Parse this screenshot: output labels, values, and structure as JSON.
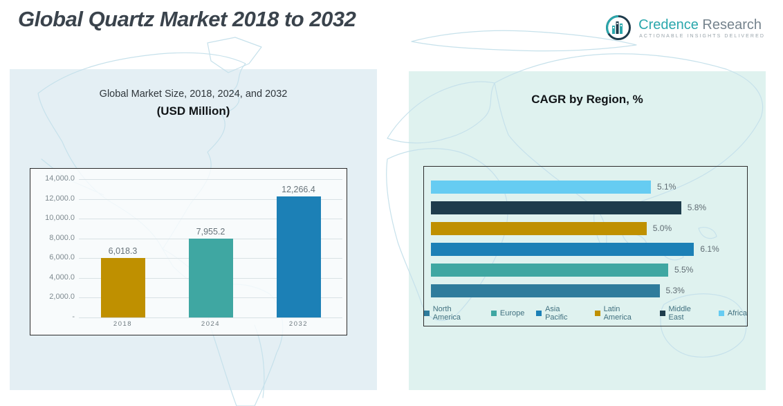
{
  "header": {
    "title": "Global Quartz Market 2018 to 2032",
    "logo": {
      "brand_primary": "Credence",
      "brand_secondary": "Research",
      "tagline": "ACTIONABLE INSIGHTS DELIVERED"
    }
  },
  "chart_data": [
    {
      "id": "global-market-size",
      "type": "bar",
      "title": "Global Market Size, 2018, 2024, and 2032",
      "subtitle": "(USD Million)",
      "categories": [
        "2018",
        "2024",
        "2032"
      ],
      "values": [
        6018.3,
        7955.2,
        12266.4
      ],
      "value_labels": [
        "6,018.3",
        "7,955.2",
        "12,266.4"
      ],
      "bar_colors": [
        "#BF9000",
        "#3FA7A2",
        "#1C80B6"
      ],
      "ylim": [
        0,
        14000
      ],
      "ytick_values": [
        14000,
        12000,
        10000,
        8000,
        6000,
        4000,
        2000,
        0
      ],
      "ytick_labels": [
        "14,000.0",
        "12,000.0",
        "10,000.0",
        "8,000.0",
        "6,000.0",
        "4,000.0",
        "2,000.0",
        "-"
      ],
      "grid": true,
      "legend": null
    },
    {
      "id": "cagr-by-region",
      "type": "bar",
      "orientation": "horizontal",
      "title": "CAGR by Region, %",
      "categories": [
        "Africa",
        "Middle East",
        "Latin America",
        "Asia Pacific",
        "Europe",
        "North America"
      ],
      "values": [
        5.1,
        5.8,
        5.0,
        6.1,
        5.5,
        5.3
      ],
      "value_labels": [
        "5.1%",
        "5.8%",
        "5.0%",
        "6.1%",
        "5.5%",
        "5.3%"
      ],
      "bar_colors": [
        "#66CCF2",
        "#1E3C4C",
        "#BF9000",
        "#1C80B6",
        "#3FA7A2",
        "#2F7C9C"
      ],
      "xlim": [
        0,
        7.2
      ],
      "grid": false,
      "legend_position": "bottom",
      "legend": [
        {
          "label": "North America",
          "color": "#2F7C9C"
        },
        {
          "label": "Europe",
          "color": "#3FA7A2"
        },
        {
          "label": "Asia Pacific",
          "color": "#1C80B6"
        },
        {
          "label": "Latin America",
          "color": "#BF9000"
        },
        {
          "label": "Middle East",
          "color": "#1E3C4C"
        },
        {
          "label": "Africa",
          "color": "#66CCF2"
        }
      ]
    }
  ],
  "colors": {
    "title_text": "#3A434C",
    "axis_text": "#7D898F",
    "left_panel_bg": "#E4EFF4",
    "right_panel_bg": "#DFF2EF",
    "map_line": "#C6E1EB",
    "brand_teal": "#2AA7AC",
    "brand_gray": "#75838D"
  }
}
